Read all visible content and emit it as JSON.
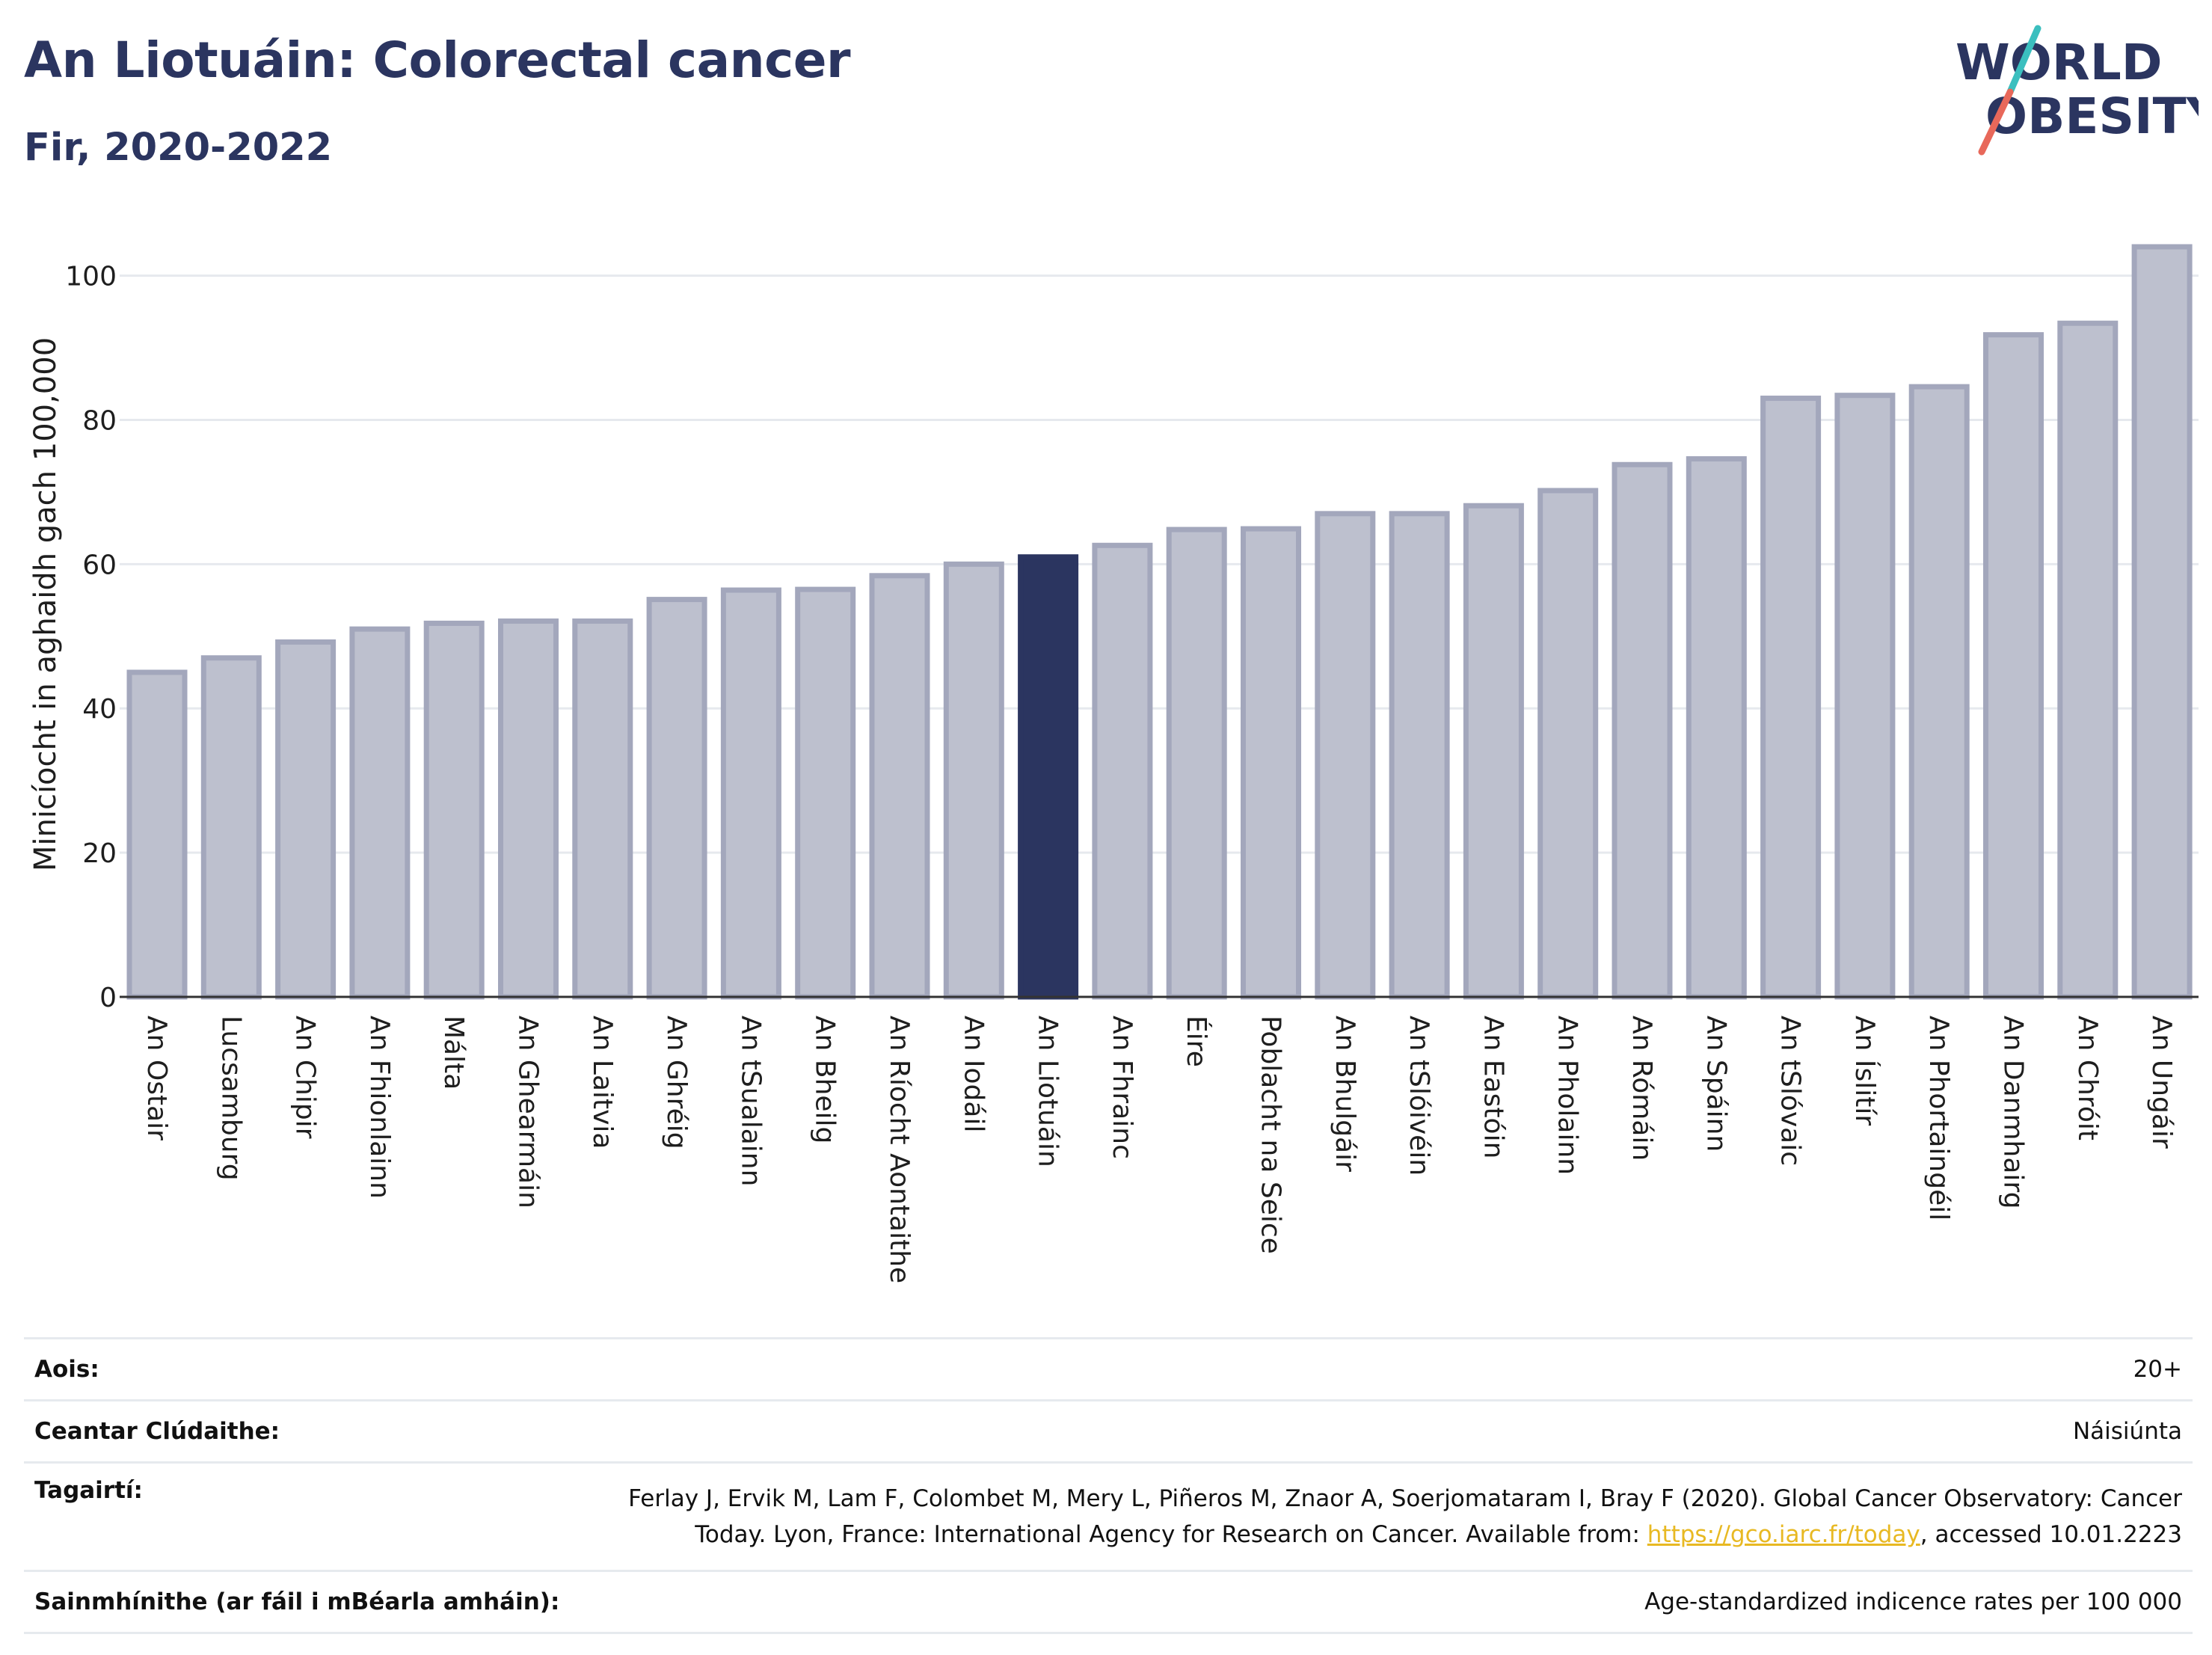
{
  "header": {
    "title": "An Liotuáin: Colorectal cancer",
    "subtitle": "Fir, 2020-2022"
  },
  "logo": {
    "line1": "WORLD",
    "line2": "OBESITY",
    "colors": {
      "text": "#2b3560",
      "slash_top": "#3bbfbf",
      "slash_bottom": "#e8685a"
    }
  },
  "colors": {
    "bar": "#bdc0ce",
    "bar_border": "#a3a7bc",
    "highlight": "#2b3560",
    "grid": "#e6e9ee",
    "axis": "#333333"
  },
  "chart_data": {
    "type": "bar",
    "ylabel": "Minicíocht in aghaidh gach 100,000",
    "xlabel": "",
    "ylim": [
      0,
      104
    ],
    "yticks": [
      0,
      20,
      40,
      60,
      80,
      100
    ],
    "grid": true,
    "highlight": "An Liotuáin",
    "categories": [
      "An Ostair",
      "Lucsamburg",
      "An Chipir",
      "An Fhionlainn",
      "Málta",
      "An Ghearmáin",
      "An Laitvia",
      "An Ghréig",
      "An tSualainn",
      "An Bheilg",
      "An Ríocht Aontaithe",
      "An Iodáil",
      "An Liotuáin",
      "An Fhrainc",
      "Éire",
      "Poblacht na Seice",
      "An Bhulgáir",
      "An tSlóivéin",
      "An Eastóin",
      "An Pholainn",
      "An Rómáin",
      "An Spáinn",
      "An tSlóvaic",
      "An Íslitír",
      "An Phortaingéil",
      "An Danmhairg",
      "An Chróit",
      "An Ungáir"
    ],
    "values": [
      45,
      47,
      49.2,
      51,
      51.8,
      52.1,
      52.1,
      55.1,
      56.4,
      56.5,
      58.4,
      60,
      61,
      62.6,
      64.8,
      64.9,
      67,
      67,
      68.1,
      70.2,
      73.8,
      74.6,
      83,
      83.4,
      84.6,
      91.8,
      93.4,
      104
    ]
  },
  "info": {
    "rows": [
      {
        "key": "Aois:",
        "value": "20+"
      },
      {
        "key": "Ceantar Clúdaithe:",
        "value": "Náisiúnta"
      },
      {
        "key": "Tagairtí:",
        "value_line1": "Ferlay J, Ervik M, Lam F, Colombet M, Mery L, Piñeros M, Znaor A, Soerjomataram I, Bray F (2020). Global Cancer Observatory: Cancer",
        "value_line2_pre": "Today. Lyon, France: International Agency for Research on Cancer. Available from: ",
        "link": "https://gco.iarc.fr/today",
        "value_line2_post": ", accessed 10.01.2223"
      },
      {
        "key": "Sainmhínithe (ar fáil i mBéarla amháin):",
        "value": "Age-standardized indicence rates per 100 000"
      }
    ]
  }
}
